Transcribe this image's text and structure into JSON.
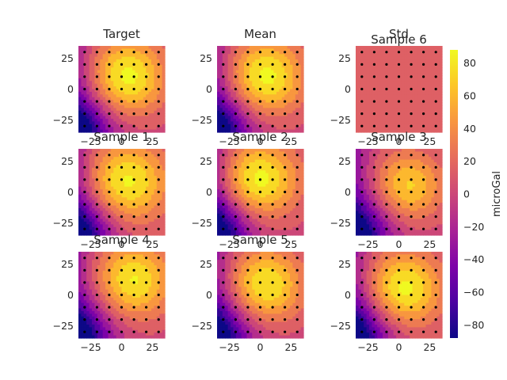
{
  "chart_data": {
    "type": "heatmap",
    "colormap": "plasma",
    "colorbar": {
      "label": "microGal",
      "range": [
        -88,
        88
      ],
      "ticks": [
        80,
        60,
        40,
        20,
        0,
        -20,
        -40,
        -60,
        -80
      ]
    },
    "x_range": [
      -35,
      35
    ],
    "y_range": [
      -35,
      35
    ],
    "x_ticks": [
      -25,
      0,
      25
    ],
    "y_ticks": [
      25,
      0,
      -25
    ],
    "station_grid": [
      -30,
      -20,
      -10,
      0,
      10,
      20,
      30
    ],
    "panels": [
      {
        "title": "Target",
        "peak": [
          5,
          10
        ],
        "amp": 88,
        "spread": 22,
        "off": 0,
        "dots": "all"
      },
      {
        "title": "Mean",
        "peak": [
          5,
          10
        ],
        "amp": 88,
        "spread": 22,
        "off": 0,
        "dots": "all"
      },
      {
        "title": "Std",
        "title2": "Sample 6",
        "constant": 15,
        "dots": "all"
      },
      {
        "title": "Sample 1",
        "peak": [
          5,
          8
        ],
        "amp": 84,
        "spread": 23,
        "off": 2,
        "dots": "all"
      },
      {
        "title": "Sample 2",
        "peak": [
          0,
          10
        ],
        "amp": 88,
        "spread": 22,
        "off": 0,
        "dots": "all"
      },
      {
        "title": "Sample 3",
        "peak": [
          8,
          5
        ],
        "amp": 72,
        "spread": 20,
        "off": -2,
        "dots": "all"
      },
      {
        "title": "Sample 4",
        "peak": [
          10,
          12
        ],
        "amp": 84,
        "spread": 22,
        "off": 0,
        "dots": "all"
      },
      {
        "title": "Sample 5",
        "peak": [
          5,
          8
        ],
        "amp": 84,
        "spread": 21,
        "off": 0,
        "dots": "all"
      },
      {
        "title": "",
        "peak": [
          5,
          5
        ],
        "amp": 86,
        "spread": 21,
        "off": 2,
        "dots": "all"
      }
    ]
  }
}
